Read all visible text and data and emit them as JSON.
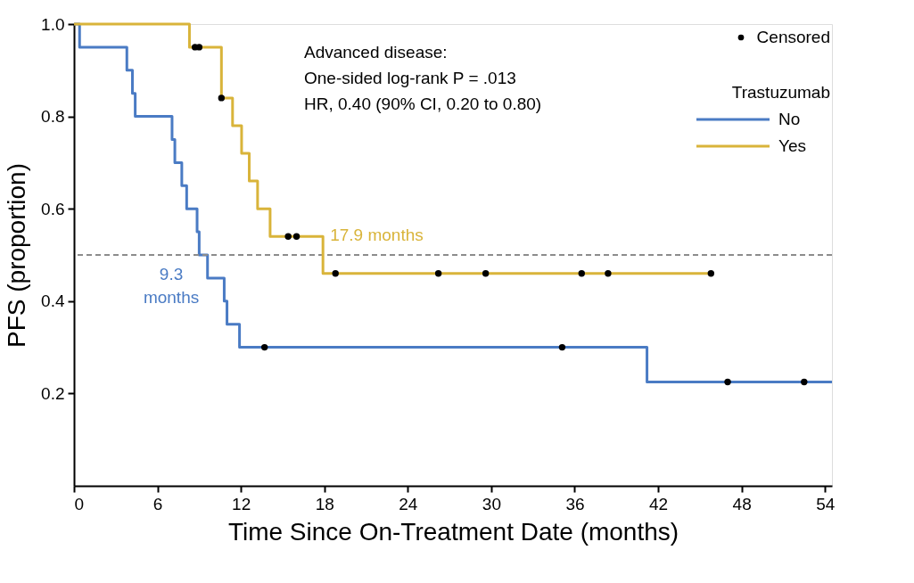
{
  "chart_data": {
    "type": "step",
    "xlabel": "Time Since On-Treatment Date (months)",
    "ylabel": "PFS (proportion)",
    "legend_title": "Trastuzumab",
    "xlim": [
      0,
      54.5
    ],
    "xticks": [
      0,
      6,
      12,
      18,
      24,
      30,
      36,
      42,
      48,
      54
    ],
    "ylim": [
      0,
      1.0
    ],
    "yticks": [
      {
        "value": 0.2,
        "label": "0.2"
      },
      {
        "value": 0.4,
        "label": "0.4"
      },
      {
        "value": 0.6,
        "label": "0.6"
      },
      {
        "value": 0.8,
        "label": "0.8"
      },
      {
        "value": 1,
        "label": "1.0"
      }
    ],
    "grid": false,
    "legend": "top right",
    "line_style": "solid",
    "series": [
      {
        "name": "No",
        "color": "#4a7bc4",
        "x": [
          0,
          0.4,
          3.8,
          4.2,
          4.4,
          7.05,
          7.25,
          7.75,
          8.1,
          8.85,
          9.0,
          9.6,
          10.8,
          11.0,
          11.9,
          41.2,
          54.5
        ],
        "values": [
          1.0,
          0.95,
          0.9,
          0.85,
          0.8,
          0.75,
          0.7,
          0.65,
          0.6,
          0.55,
          0.5,
          0.45,
          0.4,
          0.35,
          0.3,
          0.225,
          0.225
        ]
      },
      {
        "name": "Yes",
        "color": "#d9b43a",
        "x": [
          0,
          8.3,
          10.6,
          11.4,
          12.05,
          12.6,
          13.2,
          14.1,
          17.9,
          45.8
        ],
        "values": [
          1.0,
          0.95,
          0.84,
          0.78,
          0.72,
          0.66,
          0.6,
          0.54,
          0.46,
          0.46
        ]
      },
      {
        "name": "Censored",
        "color": "#000000",
        "type": "scatter",
        "marker": "circle",
        "x": [
          13.7,
          35.1,
          47.0,
          52.5,
          8.7,
          9.0,
          10.6,
          15.4,
          16.0,
          18.8,
          26.2,
          29.6,
          36.5,
          38.4,
          45.8
        ],
        "values": [
          0.3,
          0.3,
          0.225,
          0.225,
          0.95,
          0.95,
          0.84,
          0.54,
          0.54,
          0.46,
          0.46,
          0.46,
          0.46,
          0.46,
          0.46
        ]
      }
    ],
    "ref_lines": [
      {
        "axis": "y",
        "value": 0.5,
        "color": "#8c8c8c",
        "line_style": "dashed"
      }
    ],
    "annotations": [
      "Advanced disease:",
      "One-sided log-rank P = .013",
      "HR, 0.40 (90% CI, 0.20 to 0.80)",
      {
        "text": "17.9 months",
        "x": 17.9,
        "y": 0.5
      },
      {
        "text": "9.3\nmonths",
        "x": 9.3,
        "y": 0.5
      }
    ]
  }
}
